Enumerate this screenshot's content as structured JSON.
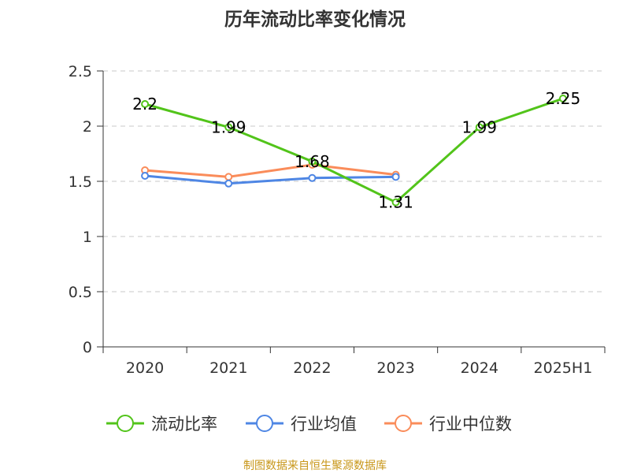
{
  "chart_data": {
    "type": "line",
    "title": "历年流动比率变化情况",
    "categories": [
      "2020",
      "2021",
      "2022",
      "2023",
      "2024",
      "2025H1"
    ],
    "ylim": [
      0,
      2.5
    ],
    "yticks": [
      "0",
      "0.5",
      "1",
      "1.5",
      "2",
      "2.5"
    ],
    "grid": true,
    "legend_position": "bottom",
    "series": [
      {
        "name": "流动比率",
        "color": "#52c41a",
        "values": [
          2.2,
          1.99,
          1.68,
          1.31,
          1.99,
          2.25
        ],
        "labels": [
          "2.2",
          "1.99",
          "1.68",
          "1.31",
          "1.99",
          "2.25"
        ]
      },
      {
        "name": "行业均值",
        "color": "#4e86e4",
        "values": [
          1.55,
          1.48,
          1.53,
          1.54,
          null,
          null
        ]
      },
      {
        "name": "行业中位数",
        "color": "#fa8c5a",
        "values": [
          1.6,
          1.54,
          1.65,
          1.56,
          null,
          null
        ]
      }
    ]
  },
  "source": "制图数据来自恒生聚源数据库"
}
